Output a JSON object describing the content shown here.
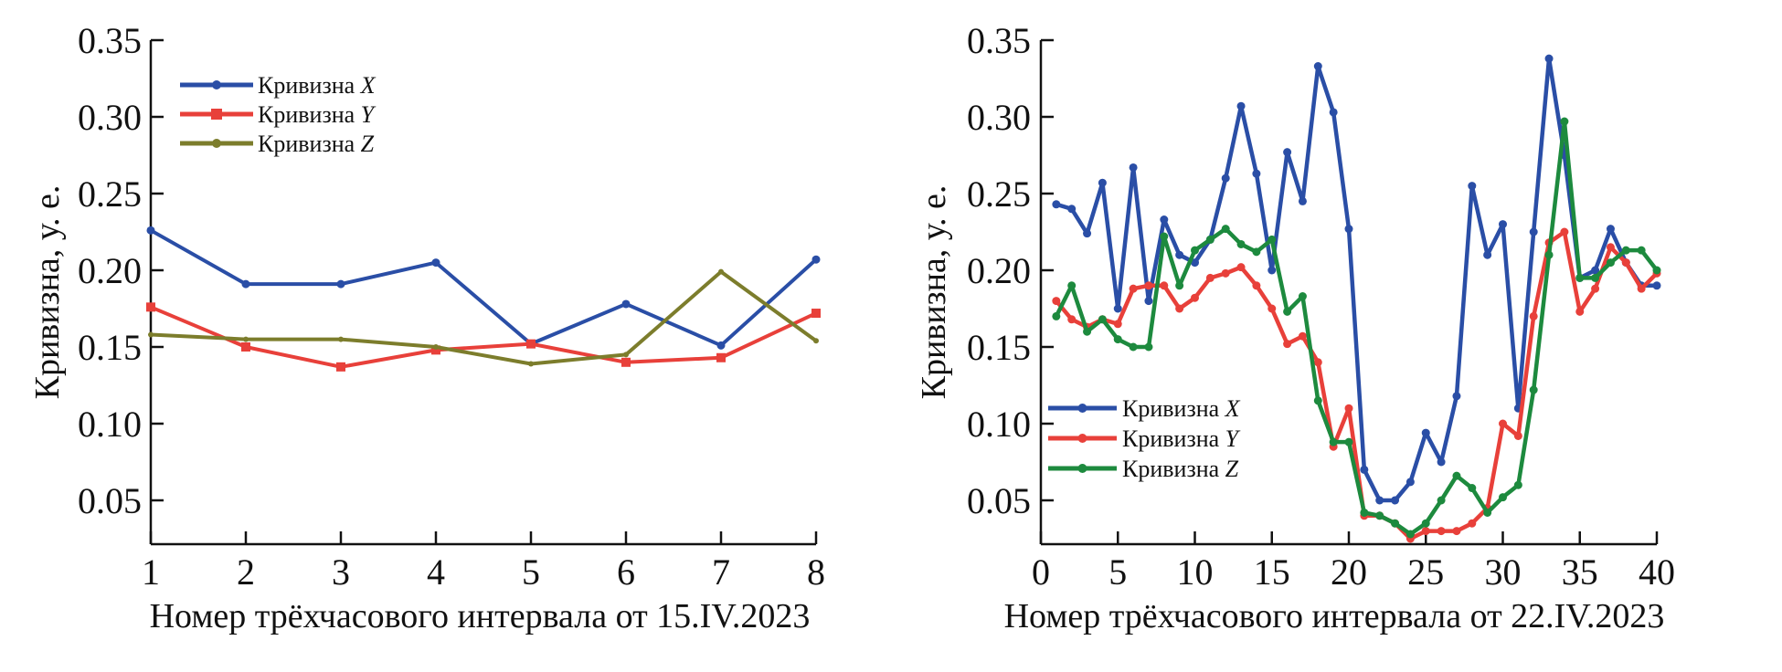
{
  "colors": {
    "x": "#2a4ea6",
    "y": "#e8403a",
    "z_left": "#7c7d2c",
    "z_right": "#1d8a3e",
    "axis": "#111111"
  },
  "chart_data": [
    {
      "type": "line",
      "xlabel": "Номер трёхчасового интервала от 15.IV.2023",
      "ylabel": "Кривизна, у. е.",
      "xlim": [
        1,
        8
      ],
      "ylim": [
        0.02,
        0.35
      ],
      "xticks": [
        "1",
        "2",
        "3",
        "4",
        "5",
        "6",
        "7",
        "8"
      ],
      "yticks": [
        "0.05",
        "0.10",
        "0.15",
        "0.20",
        "0.25",
        "0.30",
        "0.35"
      ],
      "legend_position": "top-left",
      "x": [
        1,
        2,
        3,
        4,
        5,
        6,
        7,
        8
      ],
      "series": [
        {
          "name": "Кривизна X",
          "letter": "X",
          "prefix": "Кривизна ",
          "color_key": "x",
          "values": [
            0.226,
            0.191,
            0.191,
            0.205,
            0.152,
            0.178,
            0.151,
            0.207
          ]
        },
        {
          "name": "Кривизна Y",
          "letter": "Y",
          "prefix": "Кривизна ",
          "color_key": "y",
          "values": [
            0.176,
            0.15,
            0.137,
            0.148,
            0.152,
            0.14,
            0.143,
            0.172
          ]
        },
        {
          "name": "Кривизна Z",
          "letter": "Z",
          "prefix": "Кривизна ",
          "color_key": "z_left",
          "values": [
            0.158,
            0.155,
            0.155,
            0.15,
            0.139,
            0.145,
            0.199,
            0.154
          ]
        }
      ]
    },
    {
      "type": "line",
      "xlabel": "Номер трёхчасового интервала от 22.IV.2023",
      "ylabel": "Кривизна, у. е.",
      "xlim": [
        0,
        40
      ],
      "ylim": [
        0.02,
        0.35
      ],
      "xticks": [
        "0",
        "5",
        "10",
        "15",
        "20",
        "25",
        "30",
        "35",
        "40"
      ],
      "yticks": [
        "0.05",
        "0.10",
        "0.15",
        "0.20",
        "0.25",
        "0.30",
        "0.35"
      ],
      "legend_position": "bottom-left",
      "x": [
        1,
        2,
        3,
        4,
        5,
        6,
        7,
        8,
        9,
        10,
        11,
        12,
        13,
        14,
        15,
        16,
        17,
        18,
        19,
        20,
        21,
        22,
        23,
        24,
        25,
        26,
        27,
        28,
        29,
        30,
        31,
        32,
        33,
        34,
        35,
        36,
        37,
        38,
        39,
        40
      ],
      "series": [
        {
          "name": "Кривизна X",
          "letter": "X",
          "prefix": "Кривизна ",
          "color_key": "x",
          "values": [
            0.243,
            0.24,
            0.224,
            0.257,
            0.175,
            0.267,
            0.18,
            0.233,
            0.21,
            0.205,
            0.22,
            0.26,
            0.307,
            0.263,
            0.2,
            0.277,
            0.245,
            0.333,
            0.303,
            0.227,
            0.07,
            0.05,
            0.05,
            0.062,
            0.094,
            0.075,
            0.118,
            0.255,
            0.21,
            0.23,
            0.11,
            0.225,
            0.338,
            0.275,
            0.195,
            0.2,
            0.227,
            0.205,
            0.19,
            0.19
          ]
        },
        {
          "name": "Кривизна Y",
          "letter": "Y",
          "prefix": "Кривизна ",
          "color_key": "y",
          "values": [
            0.18,
            0.168,
            0.163,
            0.168,
            0.165,
            0.188,
            0.19,
            0.19,
            0.175,
            0.182,
            0.195,
            0.198,
            0.202,
            0.19,
            0.175,
            0.152,
            0.157,
            0.14,
            0.085,
            0.11,
            0.04,
            0.04,
            0.035,
            0.025,
            0.03,
            0.03,
            0.03,
            0.035,
            0.045,
            0.1,
            0.092,
            0.17,
            0.218,
            0.225,
            0.173,
            0.188,
            0.215,
            0.205,
            0.188,
            0.198
          ]
        },
        {
          "name": "Кривизна Z",
          "letter": "Z",
          "prefix": "Кривизна ",
          "color_key": "z_right",
          "values": [
            0.17,
            0.19,
            0.16,
            0.168,
            0.155,
            0.15,
            0.15,
            0.222,
            0.19,
            0.213,
            0.22,
            0.227,
            0.217,
            0.212,
            0.22,
            0.173,
            0.183,
            0.115,
            0.088,
            0.088,
            0.042,
            0.04,
            0.035,
            0.028,
            0.035,
            0.05,
            0.066,
            0.058,
            0.042,
            0.052,
            0.06,
            0.122,
            0.21,
            0.297,
            0.195,
            0.195,
            0.205,
            0.213,
            0.213,
            0.2
          ]
        }
      ]
    }
  ]
}
